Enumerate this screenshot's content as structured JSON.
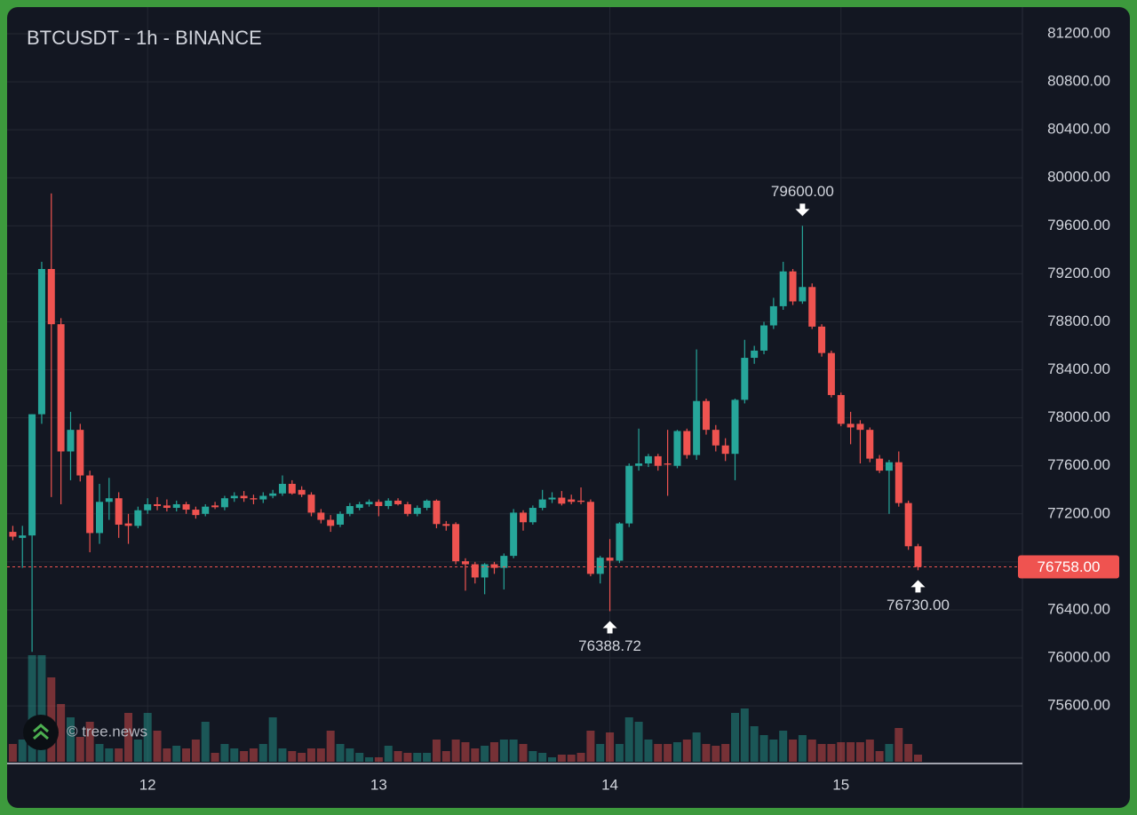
{
  "chart_data": {
    "type": "candlestick",
    "title": "BTCUSDT - 1h - BINANCE",
    "watermark": "© tree.news",
    "x": [
      11.4167,
      11.4583,
      11.5,
      11.5417,
      11.5833,
      11.625,
      11.6667,
      11.7083,
      11.75,
      11.7917,
      11.8333,
      11.875,
      11.9167,
      11.9583,
      12,
      12.0417,
      12.0833,
      12.125,
      12.1667,
      12.2083,
      12.25,
      12.2917,
      12.3333,
      12.375,
      12.4167,
      12.4583,
      12.5,
      12.5417,
      12.5833,
      12.625,
      12.6667,
      12.7083,
      12.75,
      12.7917,
      12.8333,
      12.875,
      12.9167,
      12.9583,
      13,
      13.0417,
      13.0833,
      13.125,
      13.1667,
      13.2083,
      13.25,
      13.2917,
      13.3333,
      13.375,
      13.4167,
      13.4583,
      13.5,
      13.5417,
      13.5833,
      13.625,
      13.6667,
      13.7083,
      13.75,
      13.7917,
      13.8333,
      13.875,
      13.9167,
      13.9583,
      14,
      14.0417,
      14.0833,
      14.125,
      14.1667,
      14.2083,
      14.25,
      14.2917,
      14.3333,
      14.375,
      14.4167,
      14.4583,
      14.5,
      14.5417,
      14.5833,
      14.625,
      14.6667,
      14.7083,
      14.75,
      14.7917,
      14.8333,
      14.875,
      14.9167,
      14.9583,
      15,
      15.0417,
      15.0833,
      15.125,
      15.1667,
      15.2083,
      15.25,
      15.2917,
      15.3333
    ],
    "open": [
      77050,
      77000,
      77020,
      78030,
      79240,
      78780,
      77720,
      77900,
      77520,
      77040,
      77300,
      77330,
      77120,
      77100,
      77230,
      77280,
      77270,
      77250,
      77280,
      77235,
      77200,
      77270,
      77255,
      77330,
      77350,
      77330,
      77320,
      77350,
      77370,
      77450,
      77400,
      77360,
      77210,
      77150,
      77110,
      77200,
      77250,
      77280,
      77300,
      77265,
      77310,
      77280,
      77200,
      77250,
      77310,
      77115,
      77115,
      76805,
      76780,
      76670,
      76780,
      76750,
      76850,
      77210,
      77130,
      77250,
      77320,
      77335,
      77320,
      77310,
      77300,
      76700,
      76835,
      76810,
      77120,
      77600,
      77620,
      77680,
      77620,
      77600,
      77890,
      77690,
      78140,
      77900,
      77770,
      77700,
      78150,
      78500,
      78560,
      78770,
      78930,
      79220,
      78970,
      79090,
      78760,
      78540,
      78190,
      77950,
      77950,
      77900,
      77660,
      77560,
      77630,
      77290,
      76930
    ],
    "high": [
      77100,
      77100,
      78030,
      79300,
      79870,
      78830,
      78050,
      77950,
      77560,
      77450,
      77500,
      77380,
      77200,
      77260,
      77330,
      77340,
      77320,
      77310,
      77300,
      77260,
      77280,
      77300,
      77350,
      77380,
      77390,
      77360,
      77380,
      77400,
      77520,
      77480,
      77430,
      77380,
      77240,
      77190,
      77220,
      77290,
      77300,
      77320,
      77320,
      77330,
      77330,
      77300,
      77270,
      77320,
      77320,
      77140,
      77130,
      76830,
      76800,
      76790,
      76800,
      76870,
      77240,
      77230,
      77270,
      77400,
      77380,
      77390,
      77360,
      77420,
      77320,
      76850,
      76990,
      77130,
      77620,
      77910,
      77700,
      77700,
      77900,
      77900,
      77910,
      78570,
      78160,
      77940,
      77830,
      78160,
      78650,
      78600,
      78800,
      79000,
      79300,
      79240,
      79600,
      79120,
      78780,
      78560,
      78210,
      78050,
      77980,
      77920,
      77690,
      77650,
      77720,
      77310,
      76950
    ],
    "low": [
      76980,
      76750,
      76050,
      77950,
      77340,
      77280,
      77480,
      77470,
      76880,
      76950,
      77150,
      77000,
      76950,
      77080,
      77200,
      77230,
      77220,
      77220,
      77200,
      77160,
      77180,
      77240,
      77230,
      77300,
      77300,
      77280,
      77290,
      77330,
      77350,
      77360,
      77340,
      77180,
      77120,
      77050,
      77090,
      77180,
      77230,
      77260,
      77180,
      77240,
      77270,
      77180,
      77180,
      77230,
      77080,
      77060,
      76780,
      76560,
      76620,
      76530,
      76700,
      76570,
      76830,
      77060,
      77110,
      77230,
      77290,
      77270,
      77280,
      77280,
      76680,
      76620,
      76388.72,
      76790,
      77090,
      77560,
      77590,
      77560,
      77350,
      77580,
      77660,
      77650,
      77860,
      77720,
      77640,
      77480,
      78120,
      78450,
      78530,
      78740,
      78900,
      78940,
      78950,
      78740,
      78510,
      78170,
      77930,
      77780,
      77620,
      77630,
      77540,
      77200,
      77260,
      76900,
      76730
    ],
    "close": [
      77010,
      77020,
      78030,
      79240,
      78780,
      77720,
      77900,
      77520,
      77040,
      77300,
      77330,
      77110,
      77100,
      77230,
      77280,
      77265,
      77250,
      77280,
      77235,
      77190,
      77260,
      77255,
      77330,
      77350,
      77330,
      77320,
      77350,
      77370,
      77450,
      77370,
      77360,
      77210,
      77150,
      77100,
      77200,
      77265,
      77280,
      77300,
      77265,
      77310,
      77280,
      77200,
      77250,
      77310,
      77115,
      77100,
      76805,
      76780,
      76670,
      76780,
      76750,
      76850,
      77210,
      77130,
      77250,
      77320,
      77335,
      77285,
      77300,
      77300,
      76700,
      76835,
      76810,
      77120,
      77600,
      77620,
      77680,
      77600,
      77610,
      77890,
      77690,
      78140,
      77900,
      77770,
      77700,
      78150,
      78500,
      78560,
      78770,
      78930,
      79220,
      78970,
      79090,
      78760,
      78540,
      78190,
      77950,
      77920,
      77900,
      77660,
      77560,
      77630,
      77290,
      76930,
      76758
    ],
    "volume": [
      20,
      25,
      120,
      120,
      95,
      65,
      50,
      28,
      45,
      20,
      15,
      15,
      55,
      25,
      55,
      35,
      15,
      18,
      15,
      25,
      45,
      10,
      20,
      15,
      12,
      15,
      20,
      50,
      15,
      12,
      10,
      15,
      15,
      35,
      20,
      15,
      10,
      5,
      5,
      18,
      12,
      10,
      10,
      10,
      25,
      12,
      25,
      22,
      15,
      18,
      22,
      25,
      25,
      20,
      12,
      10,
      5,
      8,
      8,
      10,
      35,
      20,
      33,
      20,
      50,
      45,
      25,
      20,
      20,
      22,
      25,
      33,
      20,
      18,
      20,
      55,
      60,
      40,
      30,
      25,
      35,
      25,
      30,
      25,
      20,
      20,
      22,
      22,
      22,
      25,
      12,
      20,
      38,
      20,
      8
    ],
    "up_color": "#26a69a",
    "down_color": "#ef5350",
    "xlim": [
      11.392,
      15.785
    ],
    "xticks": [
      12,
      13,
      14,
      15
    ],
    "ylim": [
      75120,
      81422
    ],
    "yticks": [
      {
        "value": 75600,
        "label": "75600.00"
      },
      {
        "value": 76000,
        "label": "76000.00"
      },
      {
        "value": 76400,
        "label": "76400.00"
      },
      {
        "value": 76800,
        "label": "76800.00"
      },
      {
        "value": 77200,
        "label": "77200.00"
      },
      {
        "value": 77600,
        "label": "77600.00"
      },
      {
        "value": 78000,
        "label": "78000.00"
      },
      {
        "value": 78400,
        "label": "78400.00"
      },
      {
        "value": 78800,
        "label": "78800.00"
      },
      {
        "value": 79200,
        "label": "79200.00"
      },
      {
        "value": 79600,
        "label": "79600.00"
      },
      {
        "value": 80000,
        "label": "80000.00"
      },
      {
        "value": 80400,
        "label": "80400.00"
      },
      {
        "value": 80800,
        "label": "80800.00"
      },
      {
        "value": 81200,
        "label": "81200.00"
      }
    ],
    "grid": true,
    "annotations": [
      {
        "label": "79600.00",
        "value": 79600,
        "x": 14.8333,
        "position": "above"
      },
      {
        "label": "76388.72",
        "value": 76388.72,
        "x": 14,
        "position": "below"
      },
      {
        "label": "76730.00",
        "value": 76730,
        "x": 15.3333,
        "position": "below"
      }
    ],
    "last_price": {
      "value": 76758,
      "label": "76758.00"
    }
  }
}
